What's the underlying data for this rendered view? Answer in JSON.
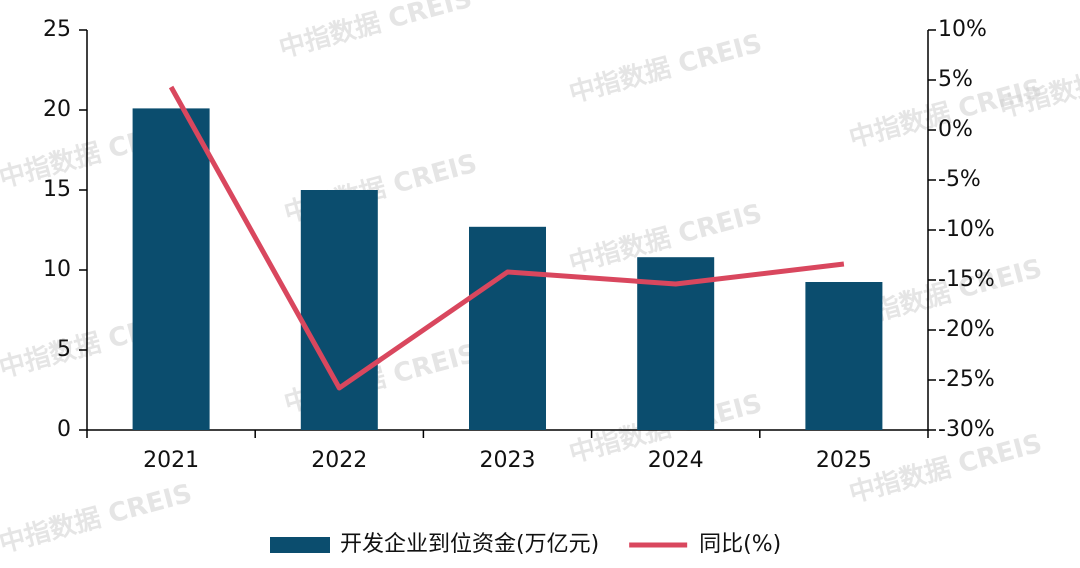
{
  "chart_data": {
    "type": "bar_line",
    "categories": [
      "2021",
      "2022",
      "2023",
      "2024",
      "2025"
    ],
    "series": [
      {
        "name": "开发企业到位资金(万亿元)",
        "type": "bar",
        "color": "#0b4d6e",
        "values": [
          20.1,
          15.0,
          12.7,
          10.8,
          9.25
        ]
      },
      {
        "name": "同比(%)",
        "type": "line",
        "axis": "y2",
        "color": "#d9475e",
        "values": [
          4.3,
          -25.8,
          -14.2,
          -15.4,
          -13.4
        ]
      }
    ],
    "ylim": [
      0,
      25
    ],
    "yticks": [
      0,
      5,
      10,
      15,
      20,
      25
    ],
    "y2lim": [
      -30,
      10
    ],
    "y2ticks": [
      {
        "value": -30,
        "label": "-30%"
      },
      {
        "value": -25,
        "label": "-25%"
      },
      {
        "value": -20,
        "label": "-20%"
      },
      {
        "value": -15,
        "label": "-15%"
      },
      {
        "value": -10,
        "label": "-10%"
      },
      {
        "value": -5,
        "label": "-5%"
      },
      {
        "value": 0,
        "label": "0%"
      },
      {
        "value": 5,
        "label": "5%"
      },
      {
        "value": 10,
        "label": "10%"
      }
    ],
    "legend": "bottom",
    "watermark": "中指数据 CREIS"
  }
}
